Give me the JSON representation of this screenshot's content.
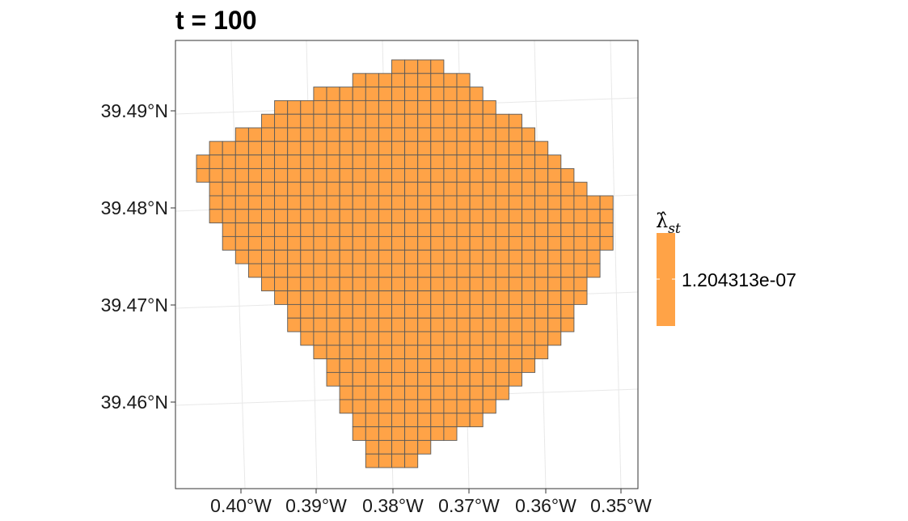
{
  "chart_data": {
    "type": "heatmap",
    "title": "t = 100",
    "xlabel": "",
    "ylabel": "",
    "x_ticks": [
      "0.40°W",
      "0.39°W",
      "0.38°W",
      "0.37°W",
      "0.36°W",
      "0.35°W"
    ],
    "y_ticks": [
      "39.46°N",
      "39.47°N",
      "39.48°N",
      "39.49°N"
    ],
    "xlim": [
      -0.4083,
      -0.3477
    ],
    "ylim": [
      39.4525,
      39.4963
    ],
    "grid": true,
    "legend": {
      "title": "λ̂",
      "title_subscript": "st",
      "placement": "right",
      "labels": [
        "1.204313e-07"
      ],
      "values": [
        1.204313e-07
      ]
    },
    "cell_value": 1.204313e-07,
    "colors": {
      "fill": "#FFA347",
      "cell_border": "#595959",
      "panel_border": "#333333",
      "grid": "#e8e8e8"
    },
    "grid_cells_by_row": [
      {
        "row": 0,
        "col_start": 15,
        "col_end": 18
      },
      {
        "row": 1,
        "col_start": 12,
        "col_end": 20
      },
      {
        "row": 2,
        "col_start": 9,
        "col_end": 21
      },
      {
        "row": 3,
        "col_start": 6,
        "col_end": 22
      },
      {
        "row": 4,
        "col_start": 5,
        "col_end": 24
      },
      {
        "row": 5,
        "col_start": 3,
        "col_end": 25
      },
      {
        "row": 6,
        "col_start": 1,
        "col_end": 26
      },
      {
        "row": 7,
        "col_start": 0,
        "col_end": 27
      },
      {
        "row": 8,
        "col_start": 0,
        "col_end": 28
      },
      {
        "row": 9,
        "col_start": 1,
        "col_end": 29
      },
      {
        "row": 10,
        "col_start": 1,
        "col_end": 31
      },
      {
        "row": 11,
        "col_start": 1,
        "col_end": 31
      },
      {
        "row": 12,
        "col_start": 2,
        "col_end": 31
      },
      {
        "row": 13,
        "col_start": 2,
        "col_end": 31
      },
      {
        "row": 14,
        "col_start": 3,
        "col_end": 30
      },
      {
        "row": 15,
        "col_start": 4,
        "col_end": 30
      },
      {
        "row": 16,
        "col_start": 5,
        "col_end": 29
      },
      {
        "row": 17,
        "col_start": 6,
        "col_end": 29
      },
      {
        "row": 18,
        "col_start": 7,
        "col_end": 28
      },
      {
        "row": 19,
        "col_start": 7,
        "col_end": 28
      },
      {
        "row": 20,
        "col_start": 8,
        "col_end": 27
      },
      {
        "row": 21,
        "col_start": 9,
        "col_end": 26
      },
      {
        "row": 22,
        "col_start": 10,
        "col_end": 25
      },
      {
        "row": 23,
        "col_start": 10,
        "col_end": 24
      },
      {
        "row": 24,
        "col_start": 11,
        "col_end": 23
      },
      {
        "row": 25,
        "col_start": 11,
        "col_end": 22
      },
      {
        "row": 26,
        "col_start": 12,
        "col_end": 21
      },
      {
        "row": 27,
        "col_start": 12,
        "col_end": 19
      },
      {
        "row": 28,
        "col_start": 13,
        "col_end": 17
      },
      {
        "row": 29,
        "col_start": 13,
        "col_end": 16
      }
    ]
  }
}
